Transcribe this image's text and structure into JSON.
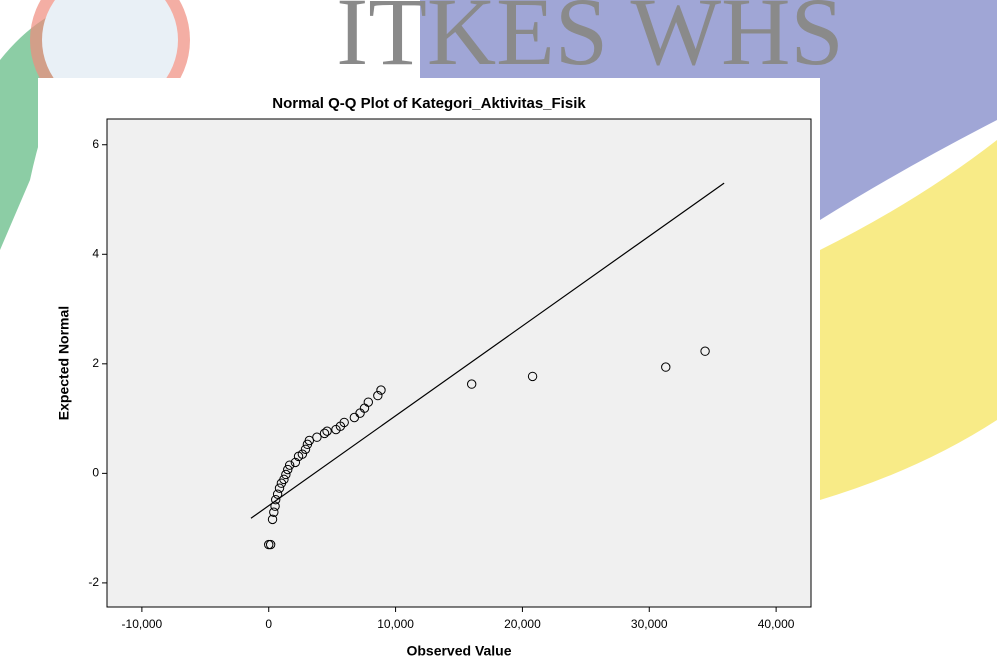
{
  "watermark": "ITKES WHS",
  "chart_data": {
    "type": "scatter",
    "title": "Normal Q-Q Plot of Kategori_Aktivitas_Fisik",
    "x_label": "Observed Value",
    "y_label": "Expected Normal",
    "x": [
      0,
      150,
      300,
      400,
      500,
      550,
      700,
      850,
      1000,
      1200,
      1350,
      1500,
      1650,
      2100,
      2350,
      2650,
      2900,
      3050,
      3200,
      3800,
      4400,
      4600,
      5300,
      5650,
      5950,
      6750,
      7200,
      7550,
      7850,
      8600,
      8850,
      16000,
      20800,
      31300,
      34400
    ],
    "values": [
      -1.3,
      -1.3,
      -0.84,
      -0.71,
      -0.6,
      -0.48,
      -0.38,
      -0.27,
      -0.18,
      -0.11,
      -0.02,
      0.07,
      0.15,
      0.2,
      0.31,
      0.35,
      0.44,
      0.53,
      0.6,
      0.66,
      0.73,
      0.77,
      0.8,
      0.86,
      0.93,
      1.02,
      1.1,
      1.19,
      1.3,
      1.42,
      1.52,
      1.63,
      1.77,
      1.94,
      2.23
    ],
    "color": "#000000",
    "reference_line": {
      "x": [
        -1400,
        35900
      ],
      "y": [
        -0.82,
        5.3
      ]
    },
    "xlim": [
      -12750,
      42750
    ],
    "xticks": [
      {
        "value": -10000,
        "label": "-10,000"
      },
      0,
      {
        "value": 10000,
        "label": "10,000"
      },
      {
        "value": 20000,
        "label": "20,000"
      },
      {
        "value": 30000,
        "label": "30,000"
      },
      {
        "value": 40000,
        "label": "40,000"
      }
    ],
    "ylim": [
      -2.44,
      6.47
    ],
    "yticks": [
      -2,
      0,
      2,
      4,
      6
    ],
    "grid": false
  }
}
